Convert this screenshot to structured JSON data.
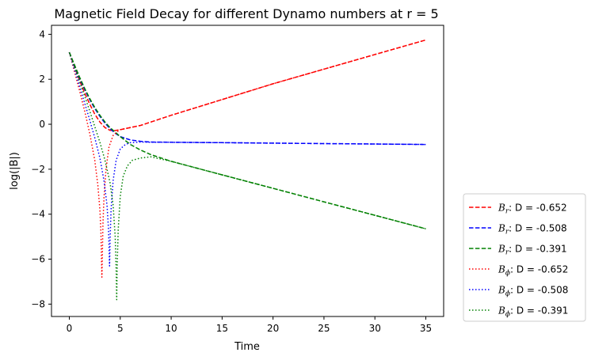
{
  "chart_data": {
    "type": "line",
    "title": "Magnetic Field Decay for different Dynamo numbers at r = 5",
    "xlabel": "Time",
    "ylabel": "log(|B|)",
    "xlim": [
      -1.75,
      36.75
    ],
    "ylim": [
      -8.55,
      4.4
    ],
    "xticks": [
      0,
      5,
      10,
      15,
      20,
      25,
      30,
      35
    ],
    "yticks": [
      -8,
      -6,
      -4,
      -2,
      0,
      2,
      4
    ],
    "grid": false,
    "legend_position": "outside-right-bottom",
    "series": [
      {
        "name": "D = -0.652",
        "component": "r",
        "style": "dashed",
        "color": "#ff0000",
        "x": [
          0,
          0.5,
          1,
          1.5,
          2,
          2.5,
          3,
          3.5,
          4,
          4.5,
          5,
          7,
          10,
          15,
          20,
          25,
          30,
          35
        ],
        "y": [
          3.2,
          2.55,
          1.95,
          1.4,
          0.9,
          0.45,
          0.1,
          -0.15,
          -0.27,
          -0.28,
          -0.24,
          -0.05,
          0.4,
          1.1,
          1.8,
          2.45,
          3.1,
          3.75
        ]
      },
      {
        "name": "D = -0.508",
        "component": "r",
        "style": "dashed",
        "color": "#0000ff",
        "x": [
          0,
          0.5,
          1,
          1.5,
          2,
          2.5,
          3,
          3.5,
          4,
          4.5,
          5,
          6,
          7,
          8,
          10,
          15,
          20,
          25,
          30,
          35
        ],
        "y": [
          3.2,
          2.6,
          2.05,
          1.55,
          1.1,
          0.7,
          0.35,
          0.05,
          -0.2,
          -0.4,
          -0.55,
          -0.7,
          -0.76,
          -0.79,
          -0.8,
          -0.82,
          -0.84,
          -0.86,
          -0.88,
          -0.9
        ]
      },
      {
        "name": "D = -0.391",
        "component": "r",
        "style": "dashed",
        "color": "#008000",
        "x": [
          0,
          0.5,
          1,
          1.5,
          2,
          2.5,
          3,
          3.5,
          4,
          4.5,
          5,
          6,
          7,
          8,
          10,
          15,
          20,
          25,
          30,
          35
        ],
        "y": [
          3.2,
          2.65,
          2.1,
          1.6,
          1.15,
          0.75,
          0.4,
          0.1,
          -0.15,
          -0.35,
          -0.55,
          -0.9,
          -1.15,
          -1.35,
          -1.65,
          -2.25,
          -2.85,
          -3.45,
          -4.05,
          -4.65
        ]
      },
      {
        "name": "D = -0.652",
        "component": "phi",
        "style": "dotted",
        "color": "#ff0000",
        "x": [
          0,
          0.5,
          1,
          1.5,
          2,
          2.5,
          2.8,
          3.0,
          3.1,
          3.15,
          3.2,
          3.25,
          3.3,
          3.4,
          3.6,
          3.9,
          4.3,
          4.8,
          5.0,
          7,
          10,
          15,
          20,
          25,
          30,
          35
        ],
        "y": [
          3.2,
          2.35,
          1.5,
          0.6,
          -0.4,
          -1.6,
          -2.7,
          -3.8,
          -4.8,
          -5.8,
          -6.8,
          -5.6,
          -4.5,
          -3.3,
          -2.0,
          -1.0,
          -0.5,
          -0.3,
          -0.24,
          -0.05,
          0.4,
          1.1,
          1.8,
          2.45,
          3.1,
          3.75
        ]
      },
      {
        "name": "D = -0.508",
        "component": "phi",
        "style": "dotted",
        "color": "#0000ff",
        "x": [
          0,
          0.5,
          1,
          1.5,
          2,
          2.5,
          3,
          3.4,
          3.7,
          3.85,
          3.95,
          4.0,
          4.1,
          4.3,
          4.6,
          5.0,
          5.5,
          6.0,
          7,
          8,
          10,
          15,
          20,
          25,
          30,
          35
        ],
        "y": [
          3.2,
          2.45,
          1.7,
          0.95,
          0.2,
          -0.6,
          -1.5,
          -2.5,
          -3.6,
          -4.7,
          -6.3,
          -5.2,
          -3.8,
          -2.5,
          -1.6,
          -1.1,
          -0.9,
          -0.82,
          -0.79,
          -0.8,
          -0.8,
          -0.82,
          -0.84,
          -0.86,
          -0.88,
          -0.9
        ]
      },
      {
        "name": "D = -0.391",
        "component": "phi",
        "style": "dotted",
        "color": "#008000",
        "x": [
          0,
          0.5,
          1,
          1.5,
          2,
          2.5,
          3,
          3.5,
          4,
          4.3,
          4.5,
          4.6,
          4.65,
          4.7,
          4.8,
          5.0,
          5.3,
          5.7,
          6.2,
          7,
          8,
          10,
          15,
          20,
          25,
          30,
          35
        ],
        "y": [
          3.2,
          2.55,
          1.9,
          1.25,
          0.6,
          -0.1,
          -0.8,
          -1.6,
          -2.6,
          -3.6,
          -5.0,
          -6.5,
          -7.8,
          -6.3,
          -4.7,
          -3.2,
          -2.3,
          -1.85,
          -1.6,
          -1.5,
          -1.45,
          -1.65,
          -2.25,
          -2.85,
          -3.45,
          -4.05,
          -4.65
        ]
      }
    ]
  }
}
